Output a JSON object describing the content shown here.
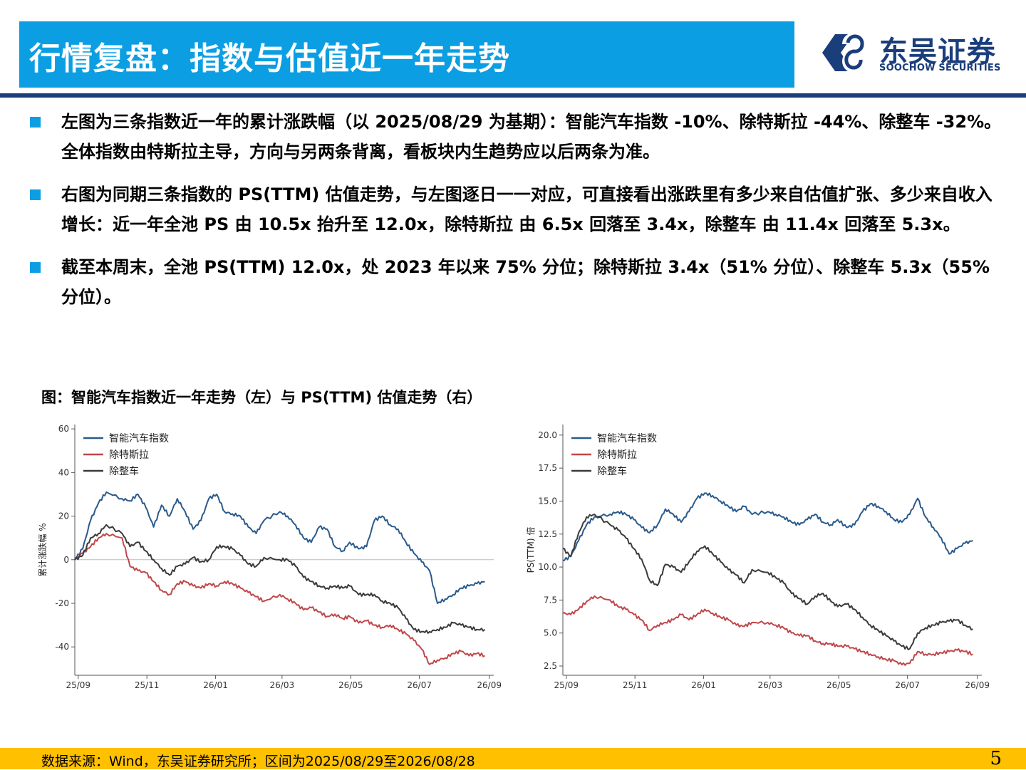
{
  "header": {
    "title": "行情复盘：指数与估值近一年走势",
    "logo_cn": "东吴证券",
    "logo_en": "SOOCHOW SECURITIES"
  },
  "bullets": [
    "左图为三条指数近一年的累计涨跌幅（以 2025/08/29 为基期）：智能汽车指数 -10%、除特斯拉 -44%、除整车 -32%。全体指数由特斯拉主导，方向与另两条背离，看板块内生趋势应以后两条为准。",
    "右图为同期三条指数的 PS(TTM) 估值走势，与左图逐日一一对应，可直接看出涨跌里有多少来自估值扩张、多少来自收入增长：近一年全池 PS 由 10.5x 抬升至 12.0x，除特斯拉 由 6.5x 回落至 3.4x，除整车 由 11.4x 回落至 5.3x。",
    "截至本周末，全池 PS(TTM) 12.0x，处 2023 年以来 75% 分位；除特斯拉 3.4x（51% 分位）、除整车 5.3x（55% 分位）。"
  ],
  "figure_caption": "图：智能汽车指数近一年走势（左）与 PS(TTM) 估值走势（右）",
  "footer": {
    "source": "数据来源：Wind，东吴证券研究所；区间为2025/08/29至2026/08/28",
    "page": "5"
  },
  "colors": {
    "accent_blue": "#0c9ee3",
    "navy": "#1a3d7c",
    "footer_yellow": "#ffc000",
    "series_blue": "#2a5a8c",
    "series_red": "#c0474a",
    "series_gray": "#3a3a3a"
  },
  "chart_data": [
    {
      "type": "line",
      "title": "",
      "xlabel": "",
      "ylabel": "累计涨跌幅 %",
      "x_ticks": [
        "25/09",
        "25/11",
        "26/01",
        "26/03",
        "26/05",
        "26/07",
        "26/09"
      ],
      "y_ticks": [
        60,
        40,
        20,
        0,
        -20,
        -40
      ],
      "ylim": [
        -53,
        62
      ],
      "zero_line": true,
      "legend_position": "top-left",
      "series": [
        {
          "name": "智能汽车指数",
          "color": "#2a5a8c",
          "x": [
            "2025-08-29",
            "2025-09-05",
            "2025-09-12",
            "2025-09-19",
            "2025-09-26",
            "2025-10-10",
            "2025-10-17",
            "2025-10-24",
            "2025-10-31",
            "2025-11-07",
            "2025-11-14",
            "2025-11-21",
            "2025-11-28",
            "2025-12-05",
            "2025-12-12",
            "2025-12-19",
            "2025-12-26",
            "2026-01-02",
            "2026-01-09",
            "2026-01-16",
            "2026-01-23",
            "2026-01-30",
            "2026-02-06",
            "2026-02-13",
            "2026-02-27",
            "2026-03-06",
            "2026-03-13",
            "2026-03-20",
            "2026-03-27",
            "2026-04-03",
            "2026-04-10",
            "2026-04-17",
            "2026-04-24",
            "2026-04-30",
            "2026-05-08",
            "2026-05-15",
            "2026-05-22",
            "2026-05-29",
            "2026-06-05",
            "2026-06-12",
            "2026-06-19",
            "2026-06-26",
            "2026-07-03",
            "2026-07-10",
            "2026-07-17",
            "2026-07-24",
            "2026-07-31",
            "2026-08-07",
            "2026-08-14",
            "2026-08-21",
            "2026-08-28"
          ],
          "y": [
            0,
            5,
            18,
            26,
            31,
            28,
            27,
            30,
            24,
            15,
            25,
            20,
            28,
            22,
            14,
            18,
            28,
            30,
            22,
            21,
            20,
            15,
            12,
            18,
            22,
            20,
            16,
            10,
            8,
            15,
            14,
            6,
            4,
            8,
            5,
            6,
            18,
            20,
            16,
            14,
            8,
            3,
            -1,
            -5,
            -20,
            -18,
            -16,
            -13,
            -12,
            -11,
            -10
          ]
        },
        {
          "name": "除特斯拉",
          "color": "#c0474a",
          "x": [
            "2025-08-29",
            "2025-09-05",
            "2025-09-12",
            "2025-09-19",
            "2025-09-26",
            "2025-10-10",
            "2025-10-17",
            "2025-10-24",
            "2025-10-31",
            "2025-11-07",
            "2025-11-14",
            "2025-11-21",
            "2025-11-28",
            "2025-12-05",
            "2025-12-12",
            "2025-12-19",
            "2025-12-26",
            "2026-01-02",
            "2026-01-09",
            "2026-01-16",
            "2026-01-23",
            "2026-01-30",
            "2026-02-06",
            "2026-02-13",
            "2026-02-27",
            "2026-03-06",
            "2026-03-13",
            "2026-03-20",
            "2026-03-27",
            "2026-04-03",
            "2026-04-10",
            "2026-04-17",
            "2026-04-24",
            "2026-04-30",
            "2026-05-08",
            "2026-05-15",
            "2026-05-22",
            "2026-05-29",
            "2026-06-05",
            "2026-06-12",
            "2026-06-19",
            "2026-06-26",
            "2026-07-03",
            "2026-07-10",
            "2026-07-17",
            "2026-07-24",
            "2026-07-31",
            "2026-08-07",
            "2026-08-14",
            "2026-08-21",
            "2026-08-28"
          ],
          "y": [
            0,
            3,
            6,
            10,
            12,
            10,
            -3,
            -5,
            -6,
            -10,
            -14,
            -16,
            -11,
            -10,
            -12,
            -13,
            -11,
            -12,
            -10,
            -11,
            -13,
            -15,
            -17,
            -19,
            -16,
            -18,
            -20,
            -23,
            -22,
            -24,
            -26,
            -25,
            -27,
            -26,
            -29,
            -28,
            -30,
            -31,
            -30,
            -32,
            -34,
            -37,
            -41,
            -48,
            -46,
            -45,
            -43,
            -42,
            -44,
            -43,
            -44
          ]
        },
        {
          "name": "除整车",
          "color": "#3a3a3a",
          "x": [
            "2025-08-29",
            "2025-09-05",
            "2025-09-12",
            "2025-09-19",
            "2025-09-26",
            "2025-10-10",
            "2025-10-17",
            "2025-10-24",
            "2025-10-31",
            "2025-11-07",
            "2025-11-14",
            "2025-11-21",
            "2025-11-28",
            "2025-12-05",
            "2025-12-12",
            "2025-12-19",
            "2025-12-26",
            "2026-01-02",
            "2026-01-09",
            "2026-01-16",
            "2026-01-23",
            "2026-01-30",
            "2026-02-06",
            "2026-02-13",
            "2026-02-27",
            "2026-03-06",
            "2026-03-13",
            "2026-03-20",
            "2026-03-27",
            "2026-04-03",
            "2026-04-10",
            "2026-04-17",
            "2026-04-24",
            "2026-04-30",
            "2026-05-08",
            "2026-05-15",
            "2026-05-22",
            "2026-05-29",
            "2026-06-05",
            "2026-06-12",
            "2026-06-19",
            "2026-06-26",
            "2026-07-03",
            "2026-07-10",
            "2026-07-17",
            "2026-07-24",
            "2026-07-31",
            "2026-08-07",
            "2026-08-14",
            "2026-08-21",
            "2026-08-28"
          ],
          "y": [
            0,
            2,
            10,
            12,
            16,
            12,
            6,
            8,
            4,
            0,
            -4,
            -7,
            -3,
            -2,
            1,
            -1,
            0,
            6,
            6,
            5,
            2,
            -2,
            -3,
            1,
            0,
            0,
            -3,
            -8,
            -10,
            -12,
            -13,
            -12,
            -13,
            -12,
            -16,
            -16,
            -16,
            -19,
            -20,
            -22,
            -27,
            -32,
            -33,
            -33,
            -32,
            -31,
            -29,
            -30,
            -31,
            -32,
            -32
          ]
        }
      ]
    },
    {
      "type": "line",
      "title": "",
      "xlabel": "",
      "ylabel": "PS(TTM) 倍",
      "x_ticks": [
        "25/09",
        "25/11",
        "26/01",
        "26/03",
        "26/05",
        "26/07",
        "26/09"
      ],
      "y_ticks": [
        "20.0",
        "17.5",
        "15.0",
        "12.5",
        "10.0",
        "7.5",
        "5.0",
        "2.5"
      ],
      "ylim": [
        1.8,
        20.8
      ],
      "zero_line": false,
      "legend_position": "top-left",
      "series": [
        {
          "name": "智能汽车指数",
          "color": "#2a5a8c",
          "x": [
            "2025-08-29",
            "2025-09-05",
            "2025-09-12",
            "2025-09-19",
            "2025-09-26",
            "2025-10-10",
            "2025-10-17",
            "2025-10-24",
            "2025-10-31",
            "2025-11-07",
            "2025-11-14",
            "2025-11-21",
            "2025-11-28",
            "2025-12-05",
            "2025-12-12",
            "2025-12-19",
            "2025-12-26",
            "2026-01-02",
            "2026-01-09",
            "2026-01-16",
            "2026-01-23",
            "2026-01-30",
            "2026-02-06",
            "2026-02-13",
            "2026-02-27",
            "2026-03-06",
            "2026-03-13",
            "2026-03-20",
            "2026-03-27",
            "2026-04-03",
            "2026-04-10",
            "2026-04-17",
            "2026-04-24",
            "2026-04-30",
            "2026-05-08",
            "2026-05-15",
            "2026-05-22",
            "2026-05-29",
            "2026-06-05",
            "2026-06-12",
            "2026-06-19",
            "2026-06-26",
            "2026-07-03",
            "2026-07-10",
            "2026-07-17",
            "2026-07-24",
            "2026-07-31",
            "2026-08-07",
            "2026-08-14",
            "2026-08-21",
            "2026-08-28"
          ],
          "y": [
            10.5,
            10.8,
            12.0,
            13.2,
            13.8,
            14.0,
            14.2,
            14.0,
            13.6,
            13.0,
            12.6,
            13.2,
            14.4,
            14.0,
            13.4,
            14.2,
            15.2,
            15.6,
            15.4,
            15.0,
            14.6,
            14.2,
            14.6,
            14.0,
            14.2,
            14.0,
            13.8,
            13.4,
            13.2,
            13.6,
            14.0,
            13.4,
            13.2,
            13.6,
            13.0,
            13.2,
            14.2,
            14.8,
            14.6,
            14.2,
            13.6,
            13.4,
            14.0,
            15.2,
            13.8,
            13.0,
            12.2,
            11.0,
            11.4,
            11.8,
            12.0
          ]
        },
        {
          "name": "除特斯拉",
          "color": "#c0474a",
          "x": [
            "2025-08-29",
            "2025-09-05",
            "2025-09-12",
            "2025-09-19",
            "2025-09-26",
            "2025-10-10",
            "2025-10-17",
            "2025-10-24",
            "2025-10-31",
            "2025-11-07",
            "2025-11-14",
            "2025-11-21",
            "2025-11-28",
            "2025-12-05",
            "2025-12-12",
            "2025-12-19",
            "2025-12-26",
            "2026-01-02",
            "2026-01-09",
            "2026-01-16",
            "2026-01-23",
            "2026-01-30",
            "2026-02-06",
            "2026-02-13",
            "2026-02-27",
            "2026-03-06",
            "2026-03-13",
            "2026-03-20",
            "2026-03-27",
            "2026-04-03",
            "2026-04-10",
            "2026-04-17",
            "2026-04-24",
            "2026-04-30",
            "2026-05-08",
            "2026-05-15",
            "2026-05-22",
            "2026-05-29",
            "2026-06-05",
            "2026-06-12",
            "2026-06-19",
            "2026-06-26",
            "2026-07-03",
            "2026-07-10",
            "2026-07-17",
            "2026-07-24",
            "2026-07-31",
            "2026-08-07",
            "2026-08-14",
            "2026-08-21",
            "2026-08-28"
          ],
          "y": [
            6.5,
            6.4,
            6.8,
            7.4,
            7.8,
            7.5,
            7.0,
            6.8,
            6.4,
            6.0,
            5.2,
            5.6,
            5.8,
            6.0,
            6.4,
            6.0,
            6.4,
            6.8,
            6.5,
            6.2,
            6.0,
            5.6,
            5.5,
            5.8,
            5.8,
            5.6,
            5.4,
            5.0,
            4.8,
            4.8,
            4.4,
            4.2,
            4.2,
            4.0,
            4.0,
            3.8,
            3.6,
            3.4,
            3.2,
            3.0,
            2.9,
            2.6,
            2.7,
            3.6,
            3.4,
            3.4,
            3.5,
            3.6,
            3.7,
            3.6,
            3.4
          ]
        },
        {
          "name": "除整车",
          "color": "#3a3a3a",
          "x": [
            "2025-08-29",
            "2025-09-05",
            "2025-09-12",
            "2025-09-19",
            "2025-09-26",
            "2025-10-10",
            "2025-10-17",
            "2025-10-24",
            "2025-10-31",
            "2025-11-07",
            "2025-11-14",
            "2025-11-21",
            "2025-11-28",
            "2025-12-05",
            "2025-12-12",
            "2025-12-19",
            "2025-12-26",
            "2026-01-02",
            "2026-01-09",
            "2026-01-16",
            "2026-01-23",
            "2026-01-30",
            "2026-02-06",
            "2026-02-13",
            "2026-02-27",
            "2026-03-06",
            "2026-03-13",
            "2026-03-20",
            "2026-03-27",
            "2026-04-03",
            "2026-04-10",
            "2026-04-17",
            "2026-04-24",
            "2026-04-30",
            "2026-05-08",
            "2026-05-15",
            "2026-05-22",
            "2026-05-29",
            "2026-06-05",
            "2026-06-12",
            "2026-06-19",
            "2026-06-26",
            "2026-07-03",
            "2026-07-10",
            "2026-07-17",
            "2026-07-24",
            "2026-07-31",
            "2026-08-07",
            "2026-08-14",
            "2026-08-21",
            "2026-08-28"
          ],
          "y": [
            11.4,
            10.8,
            12.6,
            13.8,
            14.0,
            13.2,
            12.8,
            12.2,
            11.4,
            10.6,
            9.0,
            8.6,
            10.2,
            10.0,
            9.6,
            10.4,
            11.2,
            11.6,
            11.0,
            10.4,
            9.8,
            9.4,
            8.8,
            9.8,
            9.6,
            9.2,
            8.8,
            8.0,
            7.6,
            7.2,
            7.8,
            8.0,
            7.4,
            7.0,
            7.2,
            6.8,
            6.2,
            5.6,
            5.2,
            4.8,
            4.4,
            4.0,
            3.8,
            5.0,
            5.4,
            5.6,
            5.8,
            5.9,
            6.0,
            5.6,
            5.3
          ]
        }
      ]
    }
  ]
}
